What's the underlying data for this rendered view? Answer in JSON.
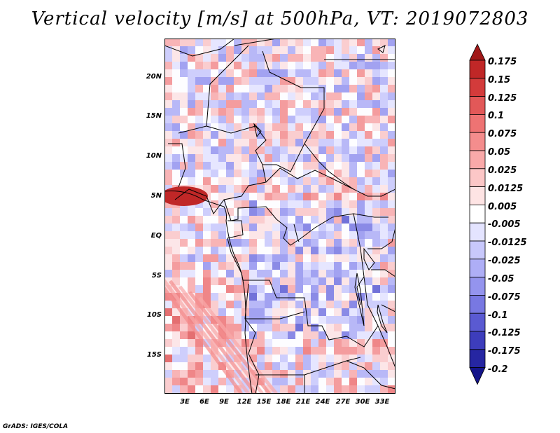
{
  "title": "Vertical velocity [m/s] at 500hPa, VT: 2019072803",
  "credit": "GrADS: IGES/COLA",
  "map": {
    "lat_labels": [
      "20N",
      "15N",
      "10N",
      "5N",
      "EQ",
      "5S",
      "10S",
      "15S"
    ],
    "lon_labels": [
      "3E",
      "6E",
      "9E",
      "12E",
      "15E",
      "18E",
      "21E",
      "24E",
      "27E",
      "30E",
      "33E"
    ],
    "lat_range": [
      -20,
      25
    ],
    "lon_range": [
      0,
      35
    ]
  },
  "colorbar": {
    "labels": [
      "0.175",
      "0.15",
      "0.125",
      "0.1",
      "0.075",
      "0.05",
      "0.025",
      "0.0125",
      "0.005",
      "-0.005",
      "-0.0125",
      "-0.025",
      "-0.05",
      "-0.075",
      "-0.1",
      "-0.125",
      "-0.175",
      "-0.2"
    ],
    "colors": [
      "#a11818",
      "#c02727",
      "#d33b3b",
      "#e25858",
      "#ee7373",
      "#f48d8d",
      "#f9a9a9",
      "#fcc7c7",
      "#fee4e4",
      "#ffffff",
      "#e4e4ff",
      "#c8c8fb",
      "#aeaef6",
      "#9494ee",
      "#7878e2",
      "#5a5ad2",
      "#3d3dbc",
      "#2626a2",
      "#14148a"
    ]
  }
}
